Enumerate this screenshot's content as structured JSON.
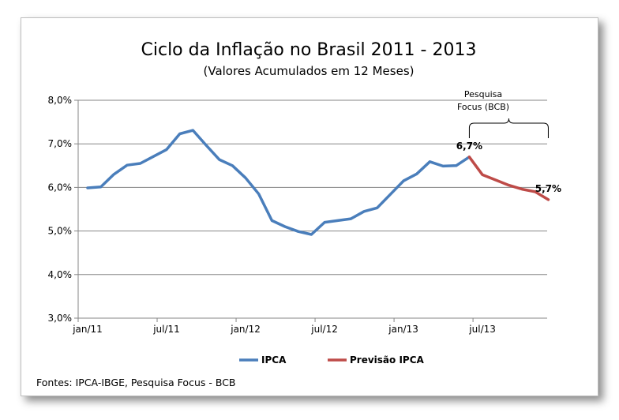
{
  "source_note": "Fontes: IPCA-IBGE, Pesquisa Focus - BCB",
  "annotation": {
    "line1": "Pesquisa",
    "line2": "Focus (BCB)"
  },
  "colors": {
    "ipca": "#4a7ebb",
    "forecast": "#be4b48",
    "grid": "#868686"
  },
  "chart_data": {
    "type": "line",
    "title": "Ciclo da Inflação no Brasil 2011 - 2013",
    "subtitle": "(Valores Acumulados em 12 Meses)",
    "xlabel": "",
    "ylabel": "",
    "ylim": [
      3.0,
      8.0
    ],
    "y_ticks": [
      3.0,
      4.0,
      5.0,
      6.0,
      7.0,
      8.0
    ],
    "y_tick_labels": [
      "3,0%",
      "4,0%",
      "5,0%",
      "6,0%",
      "7,0%",
      "8,0%"
    ],
    "x_tick_labels": [
      "jan/11",
      "jul/11",
      "jan/12",
      "jul/12",
      "jan/13",
      "jul/13"
    ],
    "grid": true,
    "legend_position": "bottom",
    "x": [
      "jan/11",
      "fev/11",
      "mar/11",
      "abr/11",
      "mai/11",
      "jun/11",
      "jul/11",
      "ago/11",
      "set/11",
      "out/11",
      "nov/11",
      "dez/11",
      "jan/12",
      "fev/12",
      "mar/12",
      "abr/12",
      "mai/12",
      "jun/12",
      "jul/12",
      "ago/12",
      "set/12",
      "out/12",
      "nov/12",
      "dez/12",
      "jan/13",
      "fev/13",
      "mar/13",
      "abr/13",
      "mai/13",
      "jun/13",
      "jul/13",
      "ago/13",
      "set/13",
      "out/13",
      "nov/13",
      "dez/13"
    ],
    "series": [
      {
        "name": "IPCA",
        "values": [
          5.99,
          6.01,
          6.3,
          6.51,
          6.55,
          6.71,
          6.87,
          7.23,
          7.31,
          6.97,
          6.64,
          6.5,
          6.22,
          5.85,
          5.24,
          5.1,
          4.99,
          4.92,
          5.2,
          5.24,
          5.28,
          5.45,
          5.53,
          5.84,
          6.15,
          6.31,
          6.59,
          6.49,
          6.5,
          6.7,
          null,
          null,
          null,
          null,
          null,
          null
        ]
      },
      {
        "name": "Previsão IPCA",
        "values": [
          null,
          null,
          null,
          null,
          null,
          null,
          null,
          null,
          null,
          null,
          null,
          null,
          null,
          null,
          null,
          null,
          null,
          null,
          null,
          null,
          null,
          null,
          null,
          null,
          null,
          null,
          null,
          null,
          null,
          6.7,
          6.29,
          6.17,
          6.05,
          5.96,
          5.9,
          5.72
        ]
      }
    ],
    "data_labels": [
      {
        "text": "6,7%",
        "index": 29,
        "value": 6.7
      },
      {
        "text": "5,7%",
        "index": 35,
        "value": 5.72
      }
    ]
  }
}
